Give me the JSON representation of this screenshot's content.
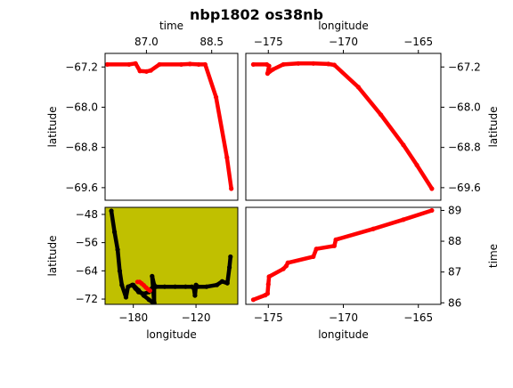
{
  "figure": {
    "title": "nbp1802 os38nb"
  },
  "colors": {
    "track": "#ff0000",
    "overview_track": "#000000",
    "map_background": "#c0c000"
  },
  "chart_data": [
    {
      "id": "time_vs_latitude",
      "type": "scatter",
      "xlabel": "time",
      "ylabel": "latitude",
      "x_axis_position": "top",
      "y_axis_position": "left",
      "xlim": [
        86.05,
        89.1
      ],
      "ylim": [
        -69.85,
        -66.93
      ],
      "xticks": [
        87.0,
        88.5
      ],
      "xtick_labels": [
        "87.0",
        "88.5"
      ],
      "yticks": [
        -67.2,
        -68.0,
        -68.8,
        -69.6
      ],
      "ytick_labels": [
        "−67.2",
        "−68.0",
        "−68.8",
        "−69.6"
      ],
      "series": [
        {
          "color": "#ff0000",
          "x": [
            86.1,
            86.6,
            86.75,
            86.85,
            87.0,
            87.1,
            87.3,
            87.8,
            88.0,
            88.2,
            88.35,
            88.6,
            88.85,
            88.95
          ],
          "y": [
            -67.15,
            -67.15,
            -67.13,
            -67.28,
            -67.29,
            -67.27,
            -67.15,
            -67.15,
            -67.14,
            -67.15,
            -67.15,
            -67.8,
            -69.0,
            -69.62
          ]
        }
      ]
    },
    {
      "id": "longitude_vs_latitude",
      "type": "scatter",
      "xlabel": "longitude",
      "ylabel": "latitude",
      "x_axis_position": "top",
      "y_axis_position": "right",
      "xlim": [
        -176.5,
        -163.5
      ],
      "ylim": [
        -69.85,
        -66.93
      ],
      "xticks": [
        -175,
        -170,
        -165
      ],
      "xtick_labels": [
        "−175",
        "−170",
        "−165"
      ],
      "yticks": [
        -67.2,
        -68.0,
        -68.8,
        -69.6
      ],
      "ytick_labels": [
        "−67.2",
        "−68.0",
        "−68.8",
        "−69.6"
      ],
      "series": [
        {
          "color": "#ff0000",
          "x": [
            -176.0,
            -175.1,
            -174.95,
            -175.05,
            -174.7,
            -174.0,
            -173.0,
            -172.0,
            -171.0,
            -170.6,
            -169.0,
            -167.5,
            -166.0,
            -165.1,
            -164.1
          ],
          "y": [
            -67.15,
            -67.15,
            -67.18,
            -67.33,
            -67.25,
            -67.15,
            -67.13,
            -67.13,
            -67.14,
            -67.16,
            -67.6,
            -68.15,
            -68.75,
            -69.15,
            -69.62
          ]
        }
      ]
    },
    {
      "id": "overview_map",
      "type": "scatter",
      "xlabel": "longitude",
      "ylabel": "latitude",
      "x_axis_position": "bottom",
      "y_axis_position": "left",
      "xlim": [
        -207,
        -80
      ],
      "ylim": [
        -73.5,
        -46
      ],
      "xticks": [
        -180,
        -120
      ],
      "xtick_labels": [
        "−180",
        "−120"
      ],
      "yticks": [
        -48,
        -56,
        -64,
        -72
      ],
      "ytick_labels": [
        "−48",
        "−56",
        "−64",
        "−72"
      ],
      "background": "#c0c000",
      "series": [
        {
          "color": "#000000",
          "x": [
            -201,
            -198,
            -195,
            -193,
            -191,
            -187,
            -185,
            -181,
            -178,
            -175,
            -170,
            -165,
            -160,
            -162,
            -160,
            -160,
            -158,
            -150,
            -140,
            -130,
            -124,
            -122,
            -121,
            -120,
            -118,
            -110,
            -100,
            -95,
            -90,
            -88,
            -87
          ],
          "y": [
            -47,
            -53,
            -58,
            -64,
            -68,
            -71.5,
            -68.5,
            -68,
            -69,
            -70,
            -70.5,
            -70,
            -68,
            -65.5,
            -73,
            -68.5,
            -68.5,
            -68.5,
            -68.5,
            -68.5,
            -68.5,
            -69,
            -71,
            -68,
            -68.5,
            -68.5,
            -68,
            -67,
            -67.5,
            -63,
            -60
          ]
        },
        {
          "color": "#000000",
          "x": [
            -180,
            -175,
            -170,
            -165,
            -160
          ],
          "y": [
            -68,
            -69.5,
            -71,
            -72.2,
            -73.3
          ]
        },
        {
          "color": "#ff0000",
          "x": [
            -176,
            -174,
            -172,
            -170,
            -168,
            -166,
            -164.1
          ],
          "y": [
            -67.15,
            -67.15,
            -67.6,
            -68.1,
            -68.7,
            -69.2,
            -69.6
          ]
        }
      ]
    },
    {
      "id": "longitude_vs_time",
      "type": "scatter",
      "xlabel": "longitude",
      "ylabel": "time",
      "x_axis_position": "bottom",
      "y_axis_position": "right",
      "xlim": [
        -176.5,
        -163.5
      ],
      "ylim": [
        85.95,
        89.1
      ],
      "xticks": [
        -175,
        -170,
        -165
      ],
      "xtick_labels": [
        "−175",
        "−170",
        "−165"
      ],
      "yticks": [
        86,
        87,
        88,
        89
      ],
      "ytick_labels": [
        "86",
        "87",
        "88",
        "89"
      ],
      "series": [
        {
          "color": "#ff0000",
          "x": [
            -176.0,
            -175.2,
            -175.05,
            -175.0,
            -174.95,
            -174.0,
            -173.8,
            -173.7,
            -172.0,
            -171.8,
            -170.6,
            -170.5,
            -168.0,
            -166.0,
            -164.1
          ],
          "y": [
            86.1,
            86.25,
            86.3,
            86.6,
            86.85,
            87.1,
            87.2,
            87.3,
            87.5,
            87.75,
            87.85,
            88.05,
            88.4,
            88.7,
            89.0
          ]
        }
      ]
    }
  ]
}
